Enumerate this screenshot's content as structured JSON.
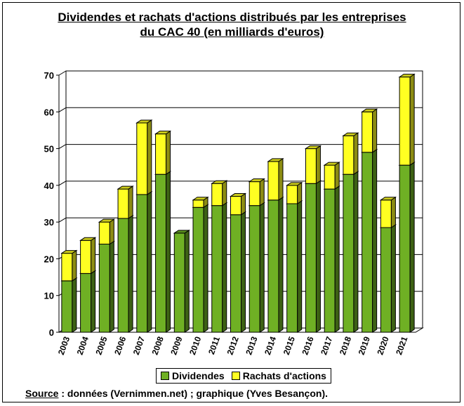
{
  "title_line1": "Dividendes et rachats d'actions distribués par les entreprises",
  "title_line2": "du CAC 40 (en milliards d'euros)",
  "source_label": "Source",
  "source_text": " : données (Vernimmen.net) ; graphique (Yves Besançon).",
  "colors": {
    "dividendes": "#6fb024",
    "rachats": "#ffff22",
    "grid": "#000000"
  },
  "chart_data": {
    "type": "bar",
    "stacked": true,
    "title": "Dividendes et rachats d'actions distribués par les entreprises du CAC 40 (en milliards d'euros)",
    "categories": [
      "2003",
      "2004",
      "2005",
      "2006",
      "2007",
      "2008",
      "2009",
      "2010",
      "2011",
      "2012",
      "2013",
      "2014",
      "2015",
      "2016",
      "2017",
      "2018",
      "2019",
      "2020",
      "2021"
    ],
    "series": [
      {
        "name": "Dividendes",
        "values": [
          14,
          16,
          24,
          31,
          37.5,
          43,
          27,
          34,
          34.5,
          32,
          34.5,
          36,
          35,
          40.5,
          39,
          43,
          49,
          28.5,
          45.5
        ]
      },
      {
        "name": "Rachats d'actions",
        "values": [
          7.5,
          9,
          6,
          8,
          19.5,
          11,
          0,
          2,
          6,
          5,
          6.5,
          10.5,
          5,
          9.5,
          6.5,
          10.5,
          11,
          7.5,
          24
        ]
      }
    ],
    "ylim": [
      0,
      70
    ],
    "yticks": [
      "0",
      "10",
      "20",
      "30",
      "40",
      "50",
      "60",
      "70"
    ],
    "grid": true,
    "legend_position": "bottom"
  }
}
